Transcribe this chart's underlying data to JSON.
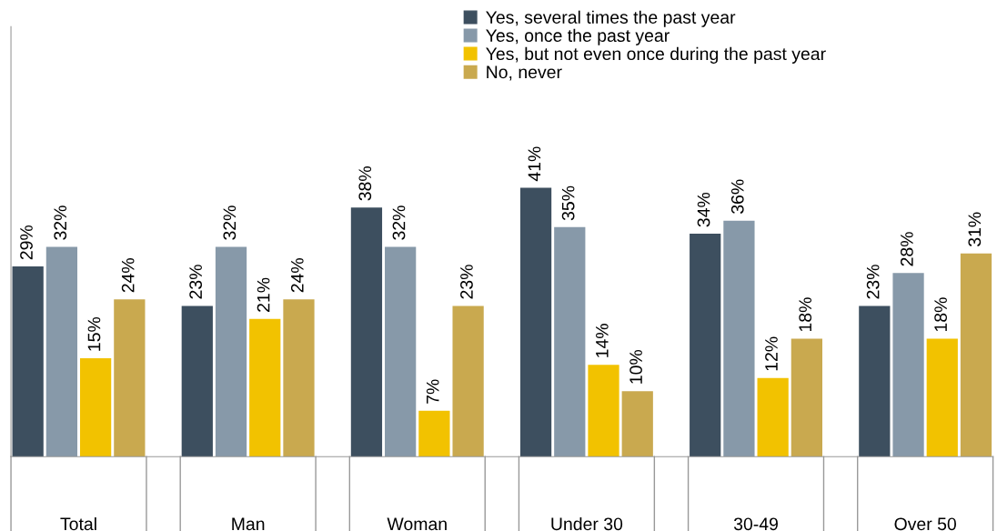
{
  "chart_data": {
    "type": "bar",
    "categories": [
      "Total",
      "Man",
      "Woman",
      "Under 30",
      "30-49",
      "Over 50"
    ],
    "series": [
      {
        "name": "Yes, several times the past year",
        "color": "#3d4f5f",
        "values": [
          29,
          23,
          38,
          41,
          34,
          23
        ],
        "value_labels": [
          "29%",
          "23%",
          "38%",
          "41%",
          "34%",
          "23%"
        ]
      },
      {
        "name": "Yes, once the past year",
        "color": "#8799a9",
        "values": [
          32,
          32,
          32,
          35,
          36,
          28
        ],
        "value_labels": [
          "32%",
          "32%",
          "32%",
          "35%",
          "36%",
          "28%"
        ]
      },
      {
        "name": "Yes, but not even once during the past year",
        "color": "#f2c200",
        "values": [
          15,
          21,
          7,
          14,
          12,
          18
        ],
        "value_labels": [
          "15%",
          "21%",
          "7%",
          "14%",
          "12%",
          "18%"
        ]
      },
      {
        "name": "No, never",
        "color": "#c9a94f",
        "values": [
          24,
          24,
          23,
          10,
          18,
          31
        ],
        "value_labels": [
          "24%",
          "24%",
          "23%",
          "10%",
          "18%",
          "31%"
        ]
      }
    ],
    "legend": "top",
    "grid": false
  }
}
